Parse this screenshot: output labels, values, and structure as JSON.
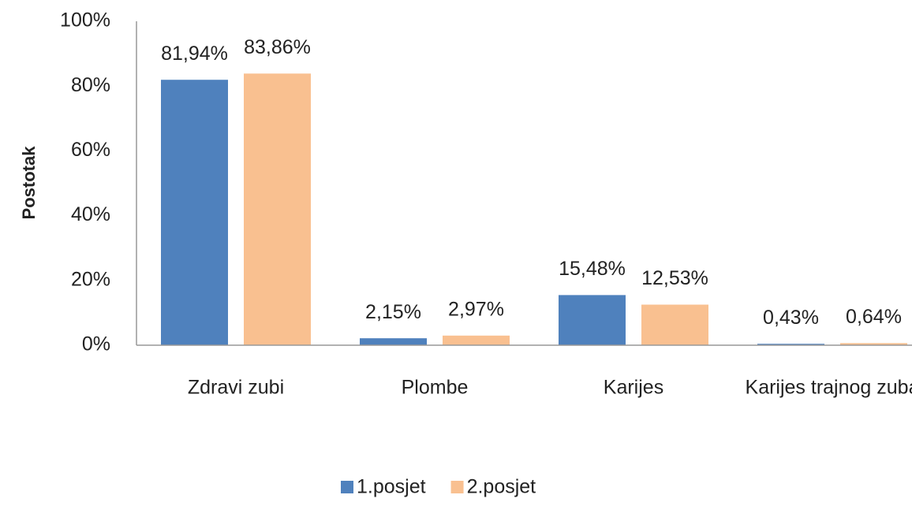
{
  "chart_data": {
    "type": "bar",
    "y_label": "Postotak",
    "categories": [
      "Zdravi zubi",
      "Plombe",
      "Karijes",
      "Karijes trajnog zuba"
    ],
    "series": [
      {
        "name": "1.posjet",
        "color": "#4f81bd",
        "values": [
          81.94,
          2.15,
          15.48,
          0.43
        ],
        "value_labels": [
          "81,94%",
          "2,15%",
          "15,48%",
          "0,43%"
        ]
      },
      {
        "name": "2.posjet",
        "color": "#f9c090",
        "values": [
          83.86,
          2.97,
          12.53,
          0.64
        ],
        "value_labels": [
          "83,86%",
          "2,97%",
          "12,53%",
          "0,64%"
        ]
      }
    ],
    "ylim": [
      0,
      100
    ],
    "yticks": [
      {
        "value": 0,
        "label": "0%"
      },
      {
        "value": 20,
        "label": "20%"
      },
      {
        "value": 40,
        "label": "40%"
      },
      {
        "value": 60,
        "label": "60%"
      },
      {
        "value": 80,
        "label": "80%"
      },
      {
        "value": 100,
        "label": "100%"
      }
    ],
    "grid": false,
    "legend": "bottom"
  }
}
